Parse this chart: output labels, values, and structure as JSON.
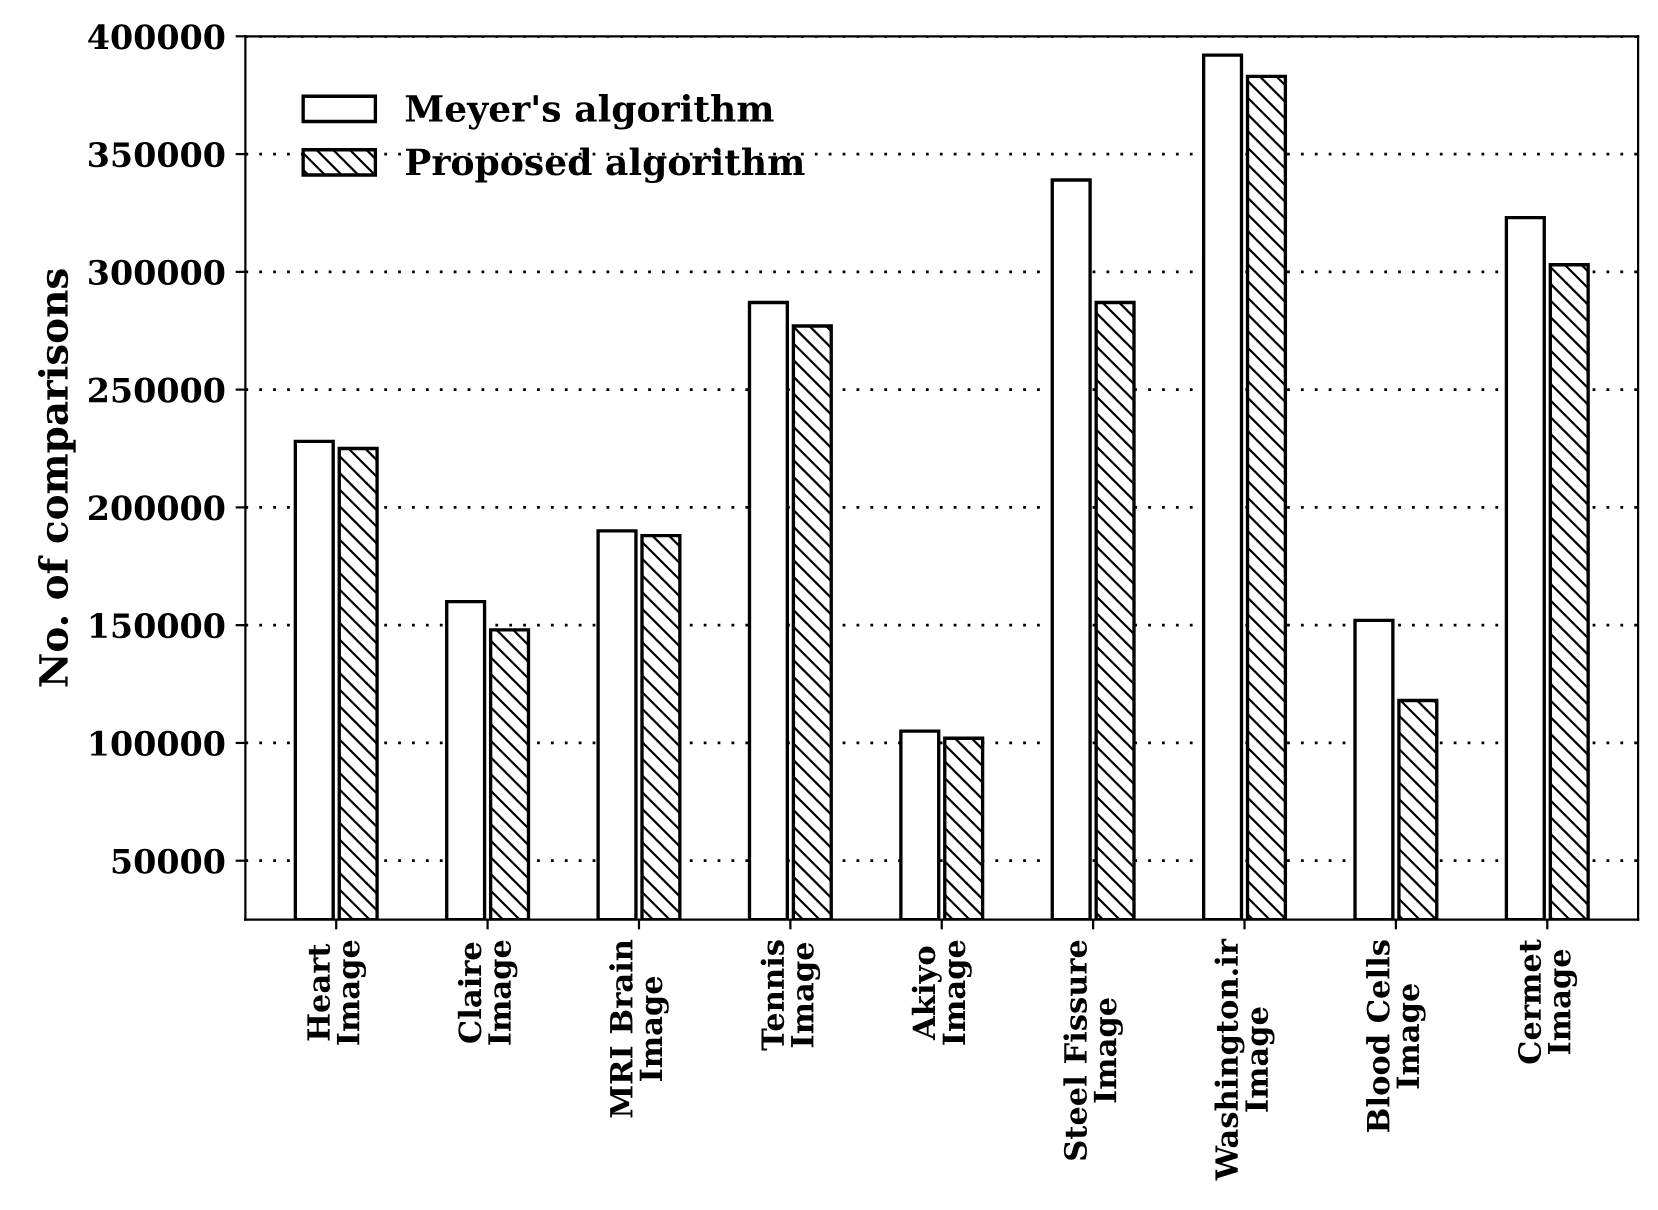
{
  "chart_data": {
    "type": "bar",
    "ylabel": "No. of comparisons",
    "categories": [
      "Heart\nImage",
      "Claire\nImage",
      "MRI Brain\nImage",
      "Tennis\nImage",
      "Akiyo\nImage",
      "Steel Fissure\nImage",
      "Washington.ir\nImage",
      "Blood Cells\nImage",
      "Cermet\nImage"
    ],
    "series": [
      {
        "name": "Meyer's algorithm",
        "color": "#ffffff",
        "values": [
          228000,
          160000,
          190000,
          287000,
          105000,
          339000,
          392000,
          152000,
          323000
        ]
      },
      {
        "name": "Proposed algorithm",
        "color": "#000000",
        "values": [
          225000,
          148000,
          188000,
          277000,
          102000,
          287000,
          383000,
          118000,
          303000
        ]
      }
    ],
    "ylim": [
      25000,
      400000
    ],
    "yticks": [
      50000,
      100000,
      150000,
      200000,
      250000,
      300000,
      350000,
      400000
    ],
    "grid": "y",
    "legend": "top left"
  }
}
